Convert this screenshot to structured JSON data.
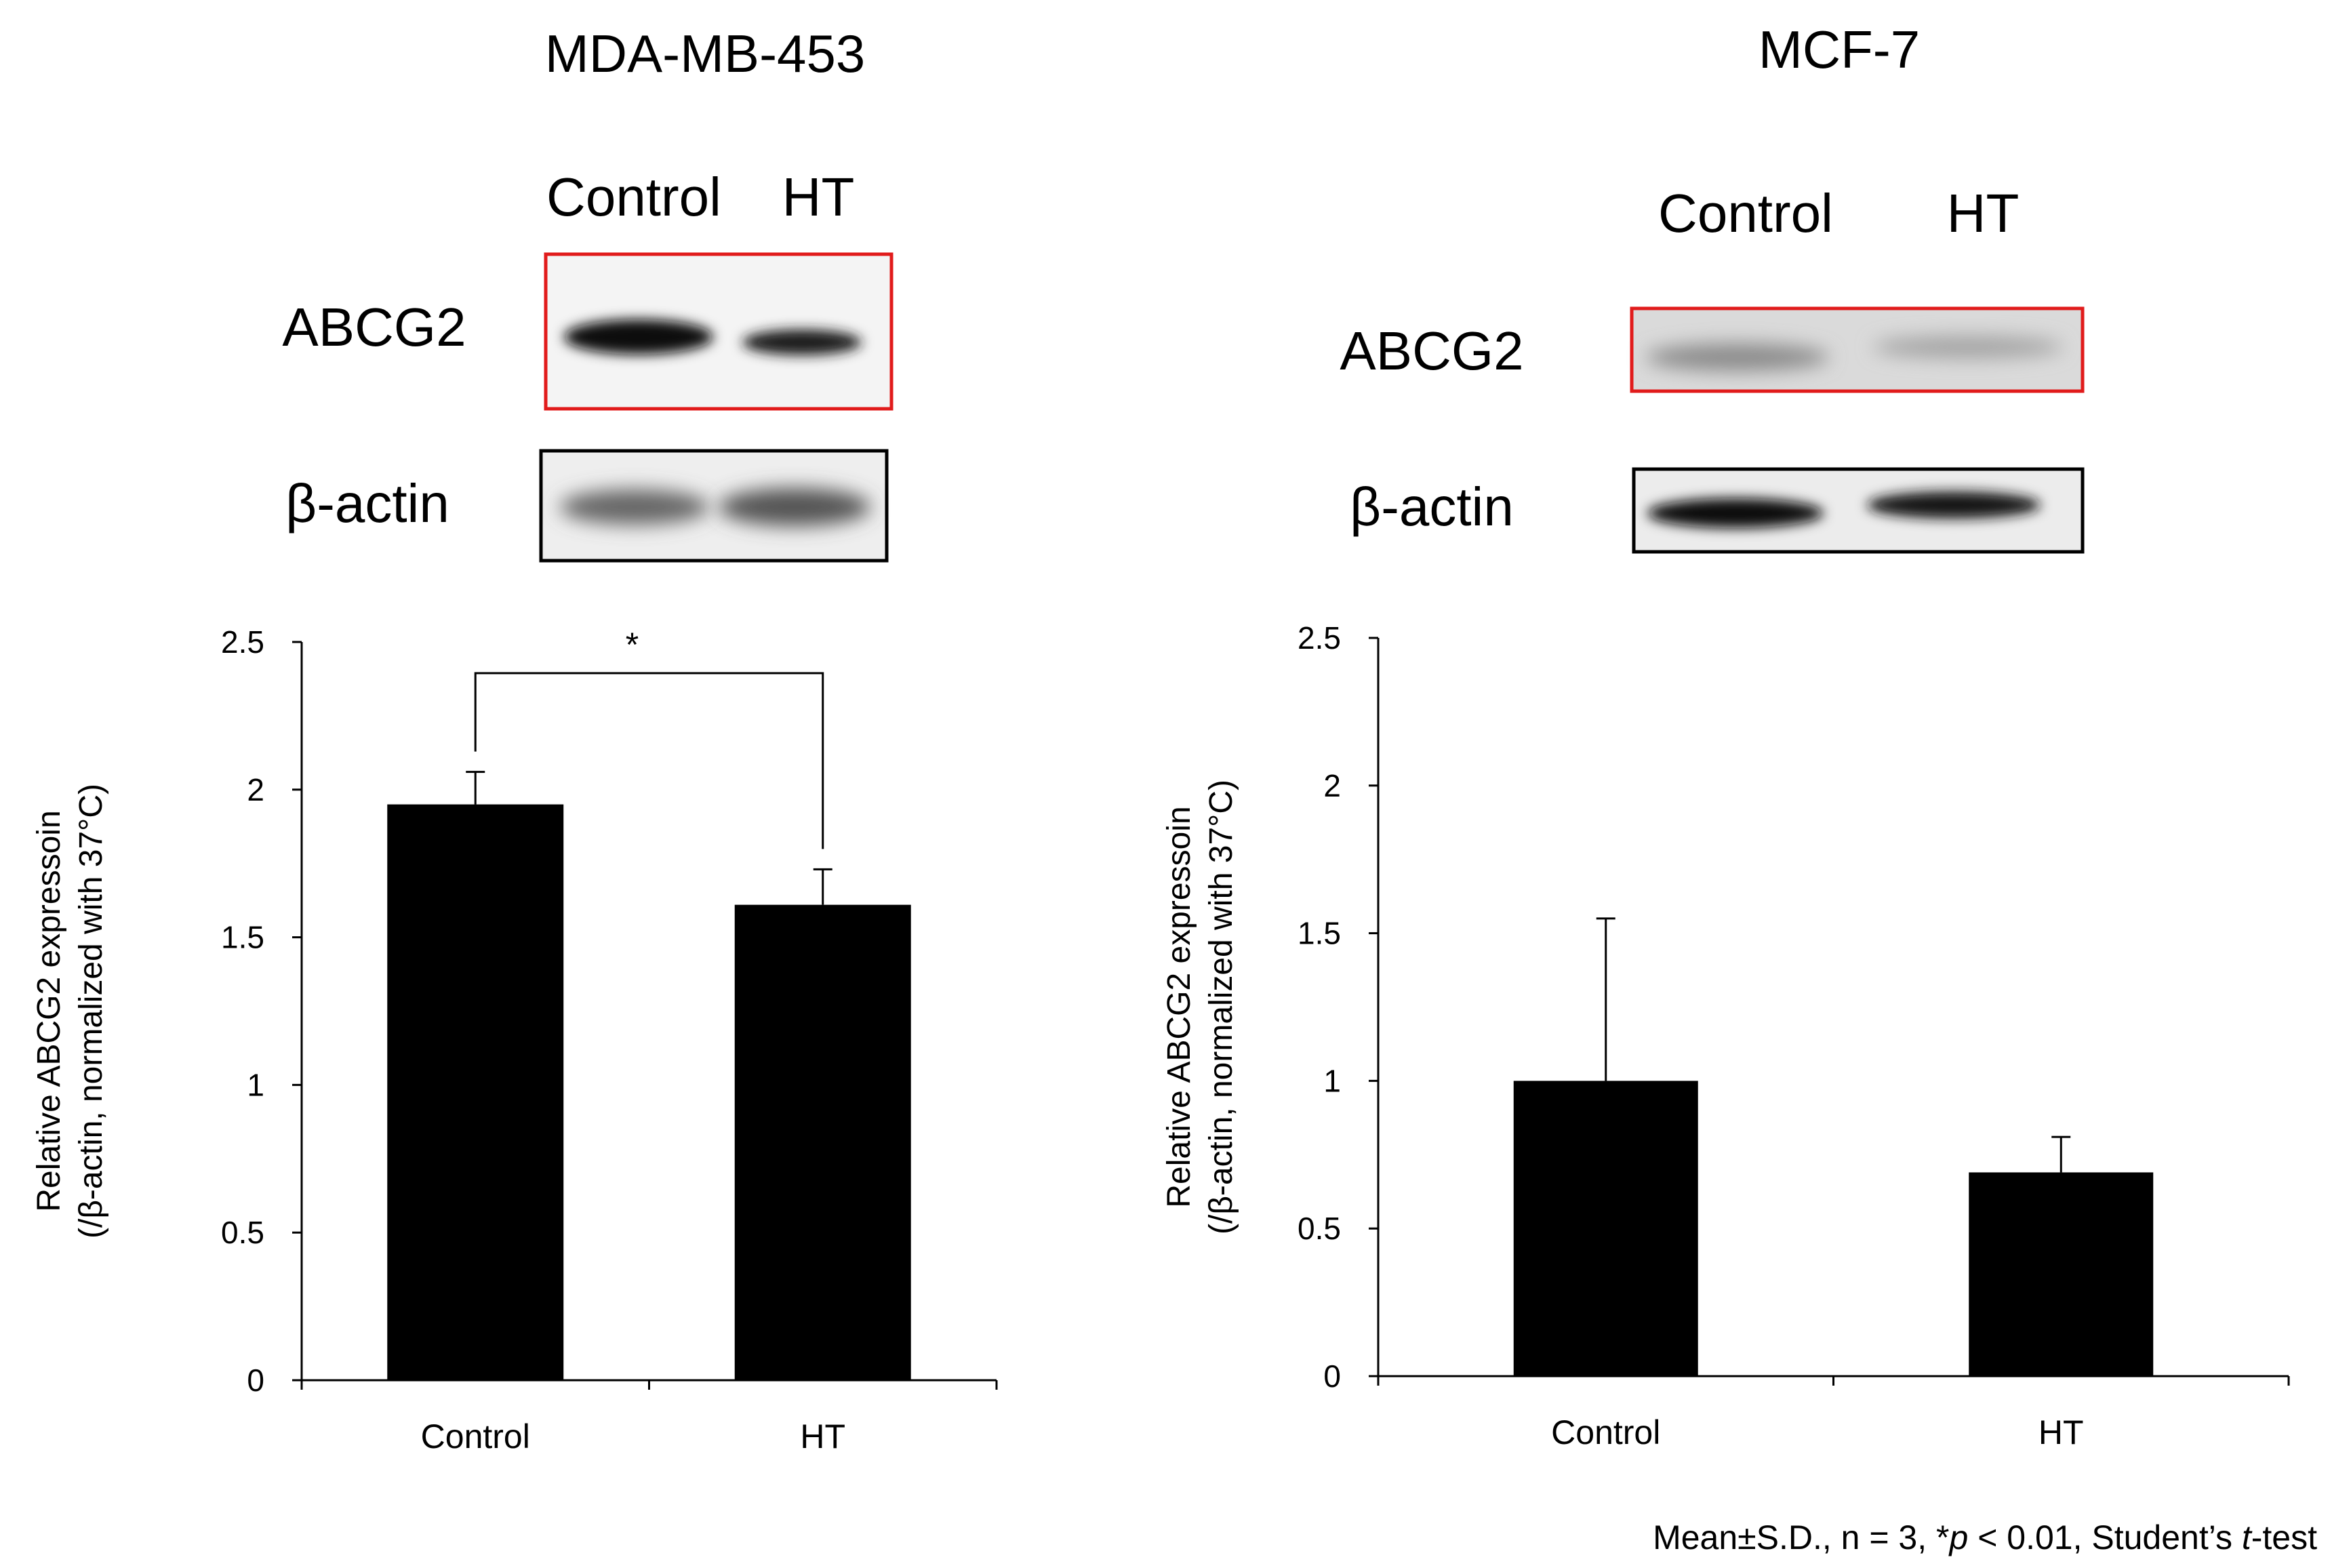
{
  "panels": [
    {
      "title": "MDA-MB-453",
      "lanes": [
        "Control",
        "HT"
      ],
      "blots": [
        {
          "protein": "ABCG2",
          "box_color": "#e11b1b"
        },
        {
          "protein": "β-actin",
          "box_color": "#000000"
        }
      ]
    },
    {
      "title": "MCF-7",
      "lanes": [
        "Control",
        "HT"
      ],
      "blots": [
        {
          "protein": "ABCG2",
          "box_color": "#e11b1b"
        },
        {
          "protein": "β-actin",
          "box_color": "#000000"
        }
      ]
    }
  ],
  "chart_data": [
    {
      "type": "bar",
      "categories": [
        "Control",
        "HT"
      ],
      "values": [
        1.95,
        1.61
      ],
      "errors": [
        0.11,
        0.12
      ],
      "ylabel_line1": "Relative ABCG2 expressoin",
      "ylabel_line2": "(/β-actin, normalized with 37°C)",
      "ylim": [
        0,
        2.5
      ],
      "yticks": [
        "0",
        "0.5",
        "1",
        "1.5",
        "2",
        "2.5"
      ],
      "significance": {
        "between": [
          "Control",
          "HT"
        ],
        "label": "*"
      },
      "bar_color": "#000000",
      "grid": false
    },
    {
      "type": "bar",
      "categories": [
        "Control",
        "HT"
      ],
      "values": [
        1.0,
        0.69
      ],
      "errors": [
        0.55,
        0.12
      ],
      "ylabel_line1": "Relative ABCG2 expressoin",
      "ylabel_line2": "(/β-actin, normalized with 37°C)",
      "ylim": [
        0,
        2.5
      ],
      "yticks": [
        "0",
        "0.5",
        "1",
        "1.5",
        "2",
        "2.5"
      ],
      "bar_color": "#000000",
      "grid": false
    }
  ],
  "footnote": {
    "part1": "Mean±S.D.,  n = 3, *",
    "p": "p",
    "part2": " < 0.01, Student’s ",
    "t": "t",
    "part3": "-test"
  }
}
